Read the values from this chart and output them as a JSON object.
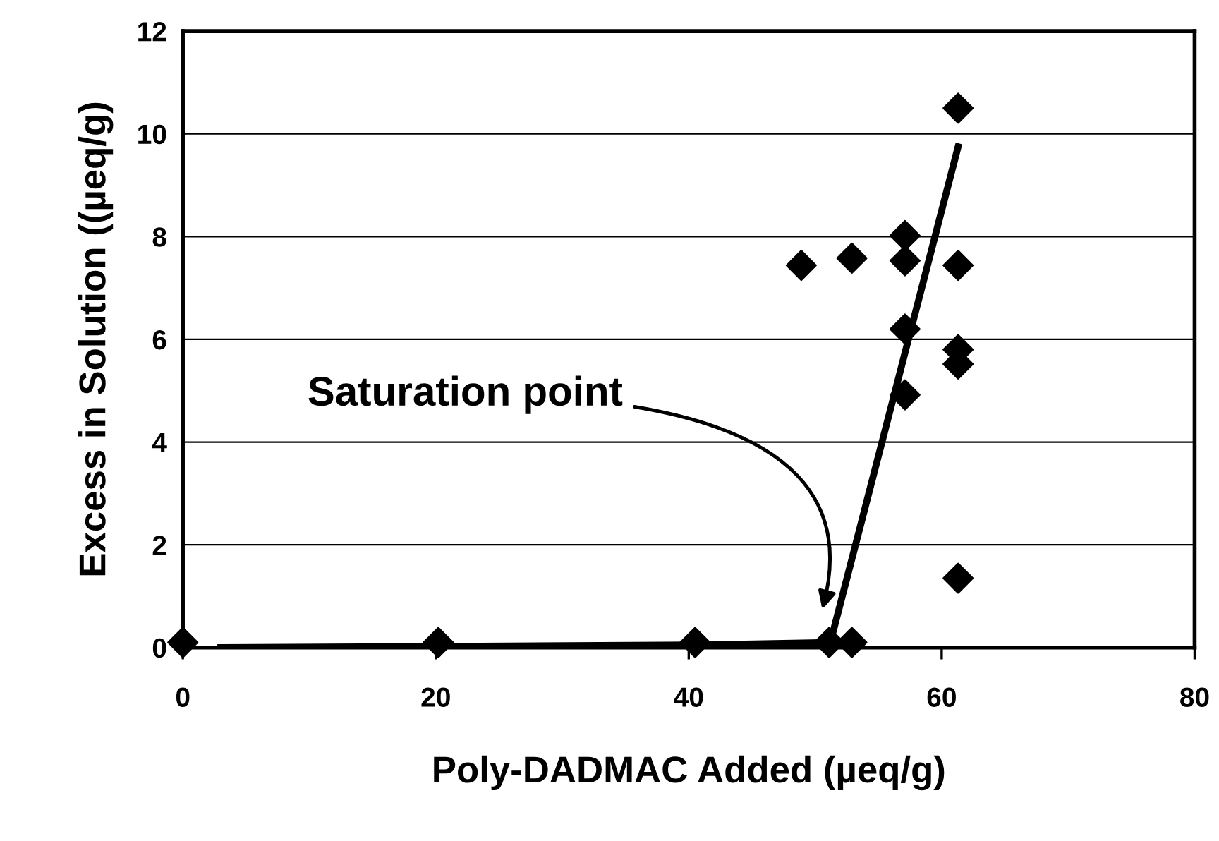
{
  "chart_data": {
    "type": "scatter",
    "xlabel": "Poly-DADMAC Added (µeq/g)",
    "ylabel": "Excess in Solution ((µeq/g)",
    "xlim": [
      0,
      80
    ],
    "xticks": [
      0,
      20,
      40,
      60,
      80
    ],
    "ylim": [
      0,
      12
    ],
    "yticks": [
      0,
      2,
      4,
      6,
      8,
      10,
      12
    ],
    "grid": "y",
    "marker": "diamond",
    "series": [
      {
        "color": "#000000",
        "x": [
          0,
          20.2,
          40.5,
          51.1,
          52.9,
          48.9,
          52.9,
          57.1,
          57.1,
          61.3,
          57.1,
          61.3,
          61.3,
          57.1,
          61.3,
          61.3
        ],
        "values": [
          0.1,
          0.1,
          0.1,
          0.1,
          0.1,
          7.44,
          7.58,
          8.02,
          7.53,
          7.44,
          6.2,
          5.8,
          5.52,
          4.92,
          1.35,
          10.5
        ]
      },
      {
        "type": "line",
        "color": "#000000",
        "marker": "none",
        "x": [
          3,
          40.5,
          51.2,
          61.3
        ],
        "values": [
          0,
          0.05,
          0.1,
          9.75
        ]
      }
    ],
    "annotations": [
      "Saturation point"
    ]
  }
}
